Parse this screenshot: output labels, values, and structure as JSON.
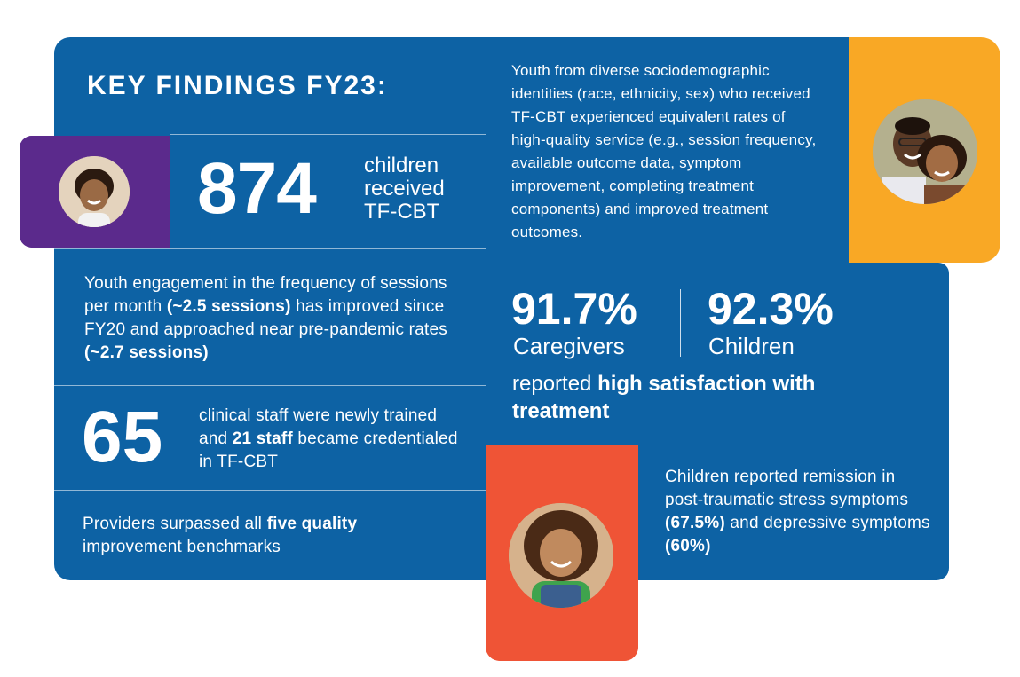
{
  "colors": {
    "blue": "#0d62a4",
    "purple": "#5b2a8c",
    "orange": "#f9a825",
    "red": "#ef5436"
  },
  "header": {
    "title": "KEY FINDINGS FY23:"
  },
  "children_stat": {
    "number": "874",
    "line1": "children",
    "line2": "received",
    "line3": "TF-CBT"
  },
  "engagement": {
    "p1": "Youth engagement in the frequency of sessions per month ",
    "b1": "(~2.5 sessions)",
    "p2": " has improved since FY20 and approached near pre-pandemic rates ",
    "b2": "(~2.7 sessions)"
  },
  "staff": {
    "number": "65",
    "p1": "clinical staff were newly trained and ",
    "b1": "21 staff",
    "p2": " became credentialed in TF-CBT"
  },
  "providers": {
    "p1": "Providers surpassed all ",
    "b1": "five quality",
    "p2": " improvement benchmarks"
  },
  "diversity": {
    "text": "Youth from diverse sociodemographic identities (race, ethnicity, sex) who received TF-CBT experienced equivalent rates of high-quality service (e.g., session frequency, available outcome data, symptom improvement, completing treatment components) and improved treatment outcomes."
  },
  "satisfaction": {
    "caregivers_pct": "91.7%",
    "caregivers_label": "Caregivers",
    "children_pct": "92.3%",
    "children_label": "Children",
    "p1": "reported ",
    "b1": "high satisfaction with treatment"
  },
  "remission": {
    "p1": "Children reported remission in post-traumatic stress symptoms ",
    "b1": "(67.5%)",
    "p2": " and depressive symptoms ",
    "b2": "(60%)"
  }
}
